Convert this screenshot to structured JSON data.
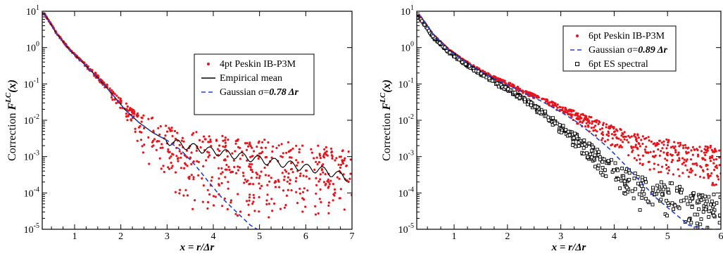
{
  "chart_data": [
    {
      "type": "scatter",
      "xlabel": "x = r/Δr",
      "ylabel_prefix": "Correction  ",
      "ylabel_main": "F",
      "ylabel_sup": "LC",
      "ylabel_suffix": "(x)",
      "xlim": [
        0.3,
        7.0
      ],
      "ylim": [
        1e-05,
        10
      ],
      "yscale": "log",
      "xticks": [
        "1",
        "2",
        "3",
        "4",
        "5",
        "6",
        "7"
      ],
      "ytick_exponents": [
        "1",
        "0",
        "-1",
        "-2",
        "-3",
        "-4",
        "-5"
      ],
      "legend_position": "center-right",
      "series": [
        {
          "name": "4pt Peskin IB-P3M",
          "kind": "points",
          "color": "#e8141b",
          "description_values": "upper envelope along Gaussian to x≈2.5 then flattening near 1e-3; lower scatter down to 1e-5",
          "x": [
            0.35,
            0.6,
            0.9,
            1.2,
            1.5,
            1.8,
            2.1,
            2.4,
            2.7,
            3.0,
            3.3,
            3.6,
            3.9,
            4.2,
            4.5,
            4.8,
            5.1,
            5.4,
            5.7,
            6.0,
            6.3,
            6.6,
            6.9
          ],
          "y_upper": [
            9,
            2.7,
            0.9,
            0.4,
            0.18,
            0.07,
            0.03,
            0.015,
            0.012,
            0.008,
            0.006,
            0.005,
            0.004,
            0.004,
            0.003,
            0.003,
            0.003,
            0.0025,
            0.0025,
            0.002,
            0.002,
            0.002,
            0.0015
          ],
          "y_lower": [
            8,
            2.4,
            0.8,
            0.33,
            0.13,
            0.04,
            0.01,
            0.002,
            0.0003,
            0.0001,
            5e-05,
            3e-05,
            3e-05,
            2e-05,
            2e-05,
            2e-05,
            2e-05,
            2e-05,
            2e-05,
            2e-05,
            2e-05,
            2e-05,
            2e-05
          ]
        },
        {
          "name": "Empirical mean",
          "kind": "line",
          "color": "#000000",
          "x": [
            0.35,
            0.6,
            0.9,
            1.2,
            1.5,
            1.8,
            2.1,
            2.4,
            2.7,
            3.0,
            3.3,
            3.6,
            3.9,
            4.2,
            4.5,
            4.8,
            5.1,
            5.4,
            5.7,
            6.0,
            6.3,
            6.6,
            6.9
          ],
          "y": [
            8.5,
            2.5,
            0.85,
            0.36,
            0.15,
            0.055,
            0.019,
            0.0085,
            0.0045,
            0.0028,
            0.0022,
            0.0018,
            0.0015,
            0.0013,
            0.0011,
            0.00095,
            0.0008,
            0.0007,
            0.0006,
            0.0005,
            0.00045,
            0.00035,
            0.00027
          ]
        },
        {
          "name_prefix": "Gaussian σ=",
          "name_value": "0.78 Δr",
          "kind": "dashed",
          "color": "#1f3fd6",
          "x": [
            0.35,
            0.6,
            0.9,
            1.2,
            1.5,
            1.8,
            2.1,
            2.4,
            2.7,
            3.0,
            3.3,
            3.6,
            3.9,
            4.2,
            4.5,
            4.8,
            4.95
          ],
          "y": [
            8.5,
            2.5,
            0.85,
            0.36,
            0.15,
            0.055,
            0.019,
            0.0085,
            0.0045,
            0.0028,
            0.0015,
            0.0006,
            0.0002,
            7e-05,
            3e-05,
            1.3e-05,
            1e-05
          ]
        }
      ]
    },
    {
      "type": "scatter",
      "xlabel": "x = r/Δr",
      "ylabel_prefix": "Correction  ",
      "ylabel_main": "F",
      "ylabel_sup": "LC",
      "ylabel_suffix": "(x)",
      "xlim": [
        0.3,
        6.0
      ],
      "ylim": [
        1e-05,
        10
      ],
      "yscale": "log",
      "xticks": [
        "1",
        "2",
        "3",
        "4",
        "5",
        "6"
      ],
      "ytick_exponents": [
        "1",
        "0",
        "-1",
        "-2",
        "-3",
        "-4",
        "-5"
      ],
      "legend_position": "top-right",
      "series": [
        {
          "name": "6pt Peskin IB-P3M",
          "kind": "points",
          "color": "#e8141b",
          "x": [
            0.35,
            0.6,
            0.9,
            1.2,
            1.5,
            1.8,
            2.1,
            2.4,
            2.7,
            3.0,
            3.3,
            3.6,
            3.9,
            4.2,
            4.5,
            4.8,
            5.1,
            5.4,
            5.7,
            6.0
          ],
          "y_upper": [
            8,
            2.4,
            0.9,
            0.45,
            0.25,
            0.15,
            0.1,
            0.06,
            0.04,
            0.025,
            0.017,
            0.012,
            0.008,
            0.005,
            0.004,
            0.003,
            0.003,
            0.002,
            0.002,
            0.002
          ],
          "y_lower": [
            7,
            2.1,
            0.8,
            0.4,
            0.2,
            0.12,
            0.075,
            0.045,
            0.028,
            0.015,
            0.008,
            0.004,
            0.002,
            0.001,
            0.0005,
            0.0003,
            0.0002,
            0.0002,
            0.00015,
            0.00015
          ]
        },
        {
          "name_prefix": "Gaussian σ=",
          "name_value": "0.89 Δr",
          "kind": "dashed",
          "color": "#1f3fd6",
          "x": [
            0.35,
            0.6,
            0.9,
            1.2,
            1.5,
            1.8,
            2.1,
            2.4,
            2.7,
            3.0,
            3.3,
            3.6,
            3.9,
            4.2,
            4.5,
            4.8,
            5.1,
            5.4,
            5.7,
            6.0
          ],
          "y": [
            8,
            2.4,
            0.85,
            0.42,
            0.22,
            0.13,
            0.08,
            0.05,
            0.03,
            0.017,
            0.009,
            0.004,
            0.0017,
            0.0006,
            0.0002,
            7e-05,
            3e-05,
            1.3e-05,
            1e-05,
            1e-05
          ]
        },
        {
          "name": "6pt ES spectral",
          "kind": "squares",
          "color": "#000000",
          "x": [
            0.35,
            0.6,
            0.9,
            1.2,
            1.5,
            1.8,
            2.1,
            2.4,
            2.7,
            3.0,
            3.3,
            3.6,
            3.9,
            4.2,
            4.5,
            4.8,
            5.1,
            5.4,
            5.7,
            6.0
          ],
          "y_upper": [
            7,
            2.1,
            0.8,
            0.38,
            0.2,
            0.11,
            0.065,
            0.035,
            0.018,
            0.008,
            0.004,
            0.002,
            0.0009,
            0.0005,
            0.0003,
            0.0002,
            0.0002,
            0.0001,
            0.0001,
            0.0001
          ],
          "y_lower": [
            6.5,
            1.9,
            0.7,
            0.33,
            0.17,
            0.09,
            0.05,
            0.025,
            0.01,
            0.004,
            0.0015,
            0.0006,
            0.0002,
            7e-05,
            3e-05,
            2e-05,
            1e-05,
            1e-05,
            1e-05,
            1e-05
          ]
        }
      ]
    }
  ]
}
